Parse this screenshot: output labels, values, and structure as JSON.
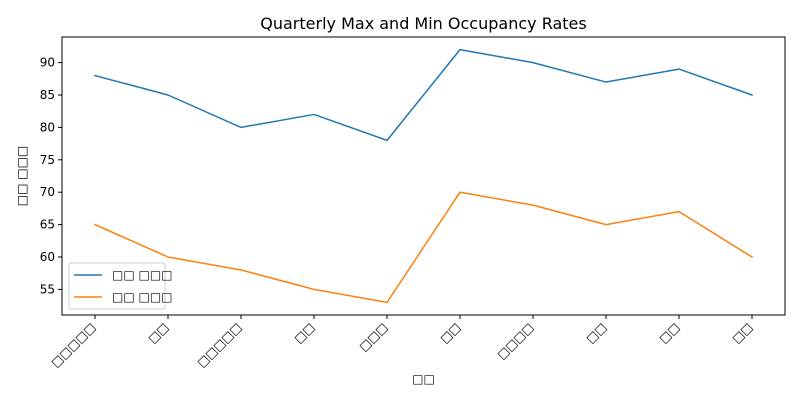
{
  "chart_data": {
    "type": "line",
    "title": "Quarterly Max and Min Occupancy Rates",
    "xlabel": "□□",
    "ylabel": "□□ □□□",
    "categories": [
      "□□□□□",
      "□□",
      "□□□□□",
      "□□",
      "□□□",
      "□□",
      "□□□□",
      "□□",
      "□□",
      "□□"
    ],
    "series": [
      {
        "name": "□□ □□□",
        "color": "#1f77b4",
        "values": [
          88,
          85,
          80,
          82,
          78,
          92,
          90,
          87,
          89,
          85
        ]
      },
      {
        "name": "□□ □□□",
        "color": "#ff7f0e",
        "values": [
          65,
          60,
          58,
          55,
          53,
          70,
          68,
          65,
          67,
          60
        ]
      }
    ],
    "ylim": [
      51.05,
      93.95
    ],
    "yticks": [
      55,
      60,
      65,
      70,
      75,
      80,
      85,
      90
    ],
    "grid": false,
    "legend": "lower-left"
  }
}
